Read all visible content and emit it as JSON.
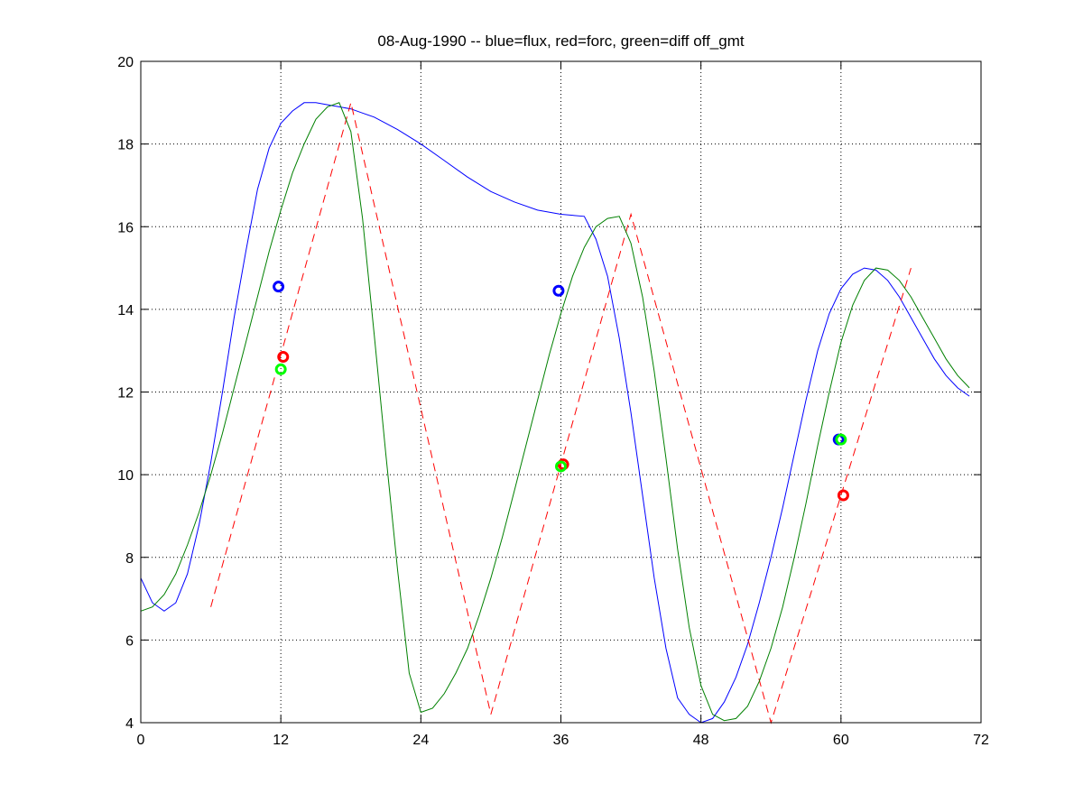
{
  "chart_data": {
    "type": "line",
    "title": "08-Aug-1990 -- blue=flux, red=forc, green=diff off_gmt",
    "xlabel": "",
    "ylabel": "",
    "xlim": [
      0,
      72
    ],
    "ylim": [
      4,
      20
    ],
    "x_ticks": [
      0,
      12,
      24,
      36,
      48,
      60,
      72
    ],
    "y_ticks": [
      4,
      6,
      8,
      10,
      12,
      14,
      16,
      18,
      20
    ],
    "grid": true,
    "grid_style": "dotted",
    "series": [
      {
        "color": "#0000ff",
        "style": "solid",
        "x": [
          0,
          1,
          2,
          3,
          4,
          5,
          6,
          7,
          8,
          9,
          10,
          11,
          12,
          13,
          14,
          15,
          16,
          17,
          18,
          19,
          20,
          22,
          24,
          26,
          28,
          30,
          32,
          34,
          36,
          38,
          39,
          40,
          41,
          42,
          43,
          44,
          45,
          46,
          47,
          48,
          49,
          50,
          51,
          52,
          53,
          54,
          55,
          56,
          57,
          58,
          59,
          60,
          61,
          62,
          63,
          64,
          65,
          66,
          67,
          68,
          69,
          70,
          71
        ],
        "y": [
          7.5,
          6.9,
          6.7,
          6.9,
          7.6,
          8.8,
          10.3,
          12.0,
          13.8,
          15.4,
          16.9,
          17.9,
          18.5,
          18.8,
          19.0,
          19.0,
          18.95,
          18.9,
          18.85,
          18.75,
          18.65,
          18.35,
          18.0,
          17.6,
          17.2,
          16.85,
          16.6,
          16.4,
          16.3,
          16.25,
          15.7,
          14.8,
          13.3,
          11.5,
          9.5,
          7.5,
          5.8,
          4.6,
          4.2,
          4.0,
          4.1,
          4.5,
          5.1,
          5.9,
          6.9,
          8.0,
          9.2,
          10.5,
          11.8,
          13.0,
          13.9,
          14.5,
          14.85,
          15.0,
          14.95,
          14.7,
          14.3,
          13.8,
          13.3,
          12.8,
          12.4,
          12.1,
          11.9
        ]
      },
      {
        "color": "#ff0000",
        "style": "dashed",
        "x": [
          6,
          18,
          30,
          42,
          54,
          66
        ],
        "y": [
          6.8,
          19.0,
          4.2,
          16.3,
          4.0,
          15.0
        ]
      },
      {
        "color": "#008000",
        "style": "solid",
        "x": [
          0,
          1,
          2,
          3,
          4,
          5,
          6,
          7,
          8,
          9,
          10,
          11,
          12,
          13,
          14,
          15,
          16,
          17,
          18,
          19,
          20,
          21,
          22,
          23,
          24,
          25,
          26,
          27,
          28,
          29,
          30,
          31,
          32,
          33,
          34,
          35,
          36,
          37,
          38,
          39,
          40,
          41,
          42,
          43,
          44,
          45,
          46,
          47,
          48,
          49,
          50,
          51,
          52,
          53,
          54,
          55,
          56,
          57,
          58,
          59,
          60,
          61,
          62,
          63,
          64,
          65,
          66,
          67,
          68,
          69,
          70,
          71
        ],
        "y": [
          6.7,
          6.8,
          7.1,
          7.6,
          8.3,
          9.1,
          10.0,
          11.0,
          12.1,
          13.2,
          14.3,
          15.4,
          16.4,
          17.3,
          18.0,
          18.6,
          18.9,
          19.0,
          18.3,
          16.2,
          13.4,
          10.5,
          7.7,
          5.2,
          4.25,
          4.35,
          4.7,
          5.2,
          5.8,
          6.6,
          7.5,
          8.5,
          9.6,
          10.7,
          11.8,
          12.9,
          13.9,
          14.8,
          15.5,
          16.0,
          16.2,
          16.25,
          15.6,
          14.3,
          12.5,
          10.4,
          8.2,
          6.3,
          4.9,
          4.2,
          4.05,
          4.1,
          4.4,
          5.0,
          5.8,
          6.8,
          8.0,
          9.3,
          10.7,
          12.0,
          13.2,
          14.1,
          14.7,
          15.0,
          14.95,
          14.7,
          14.3,
          13.8,
          13.3,
          12.8,
          12.4,
          12.1
        ]
      }
    ],
    "markers": [
      {
        "color": "#0000ff",
        "x": 11.8,
        "y": 14.55
      },
      {
        "color": "#ff0000",
        "x": 12.2,
        "y": 12.85
      },
      {
        "color": "#00ff00",
        "x": 12.0,
        "y": 12.55
      },
      {
        "color": "#0000ff",
        "x": 35.8,
        "y": 14.45
      },
      {
        "color": "#ff0000",
        "x": 36.2,
        "y": 10.25
      },
      {
        "color": "#00ff00",
        "x": 36.0,
        "y": 10.2
      },
      {
        "color": "#0000ff",
        "x": 59.8,
        "y": 10.85
      },
      {
        "color": "#00ff00",
        "x": 60.0,
        "y": 10.85
      },
      {
        "color": "#ff0000",
        "x": 60.2,
        "y": 9.5
      }
    ]
  }
}
